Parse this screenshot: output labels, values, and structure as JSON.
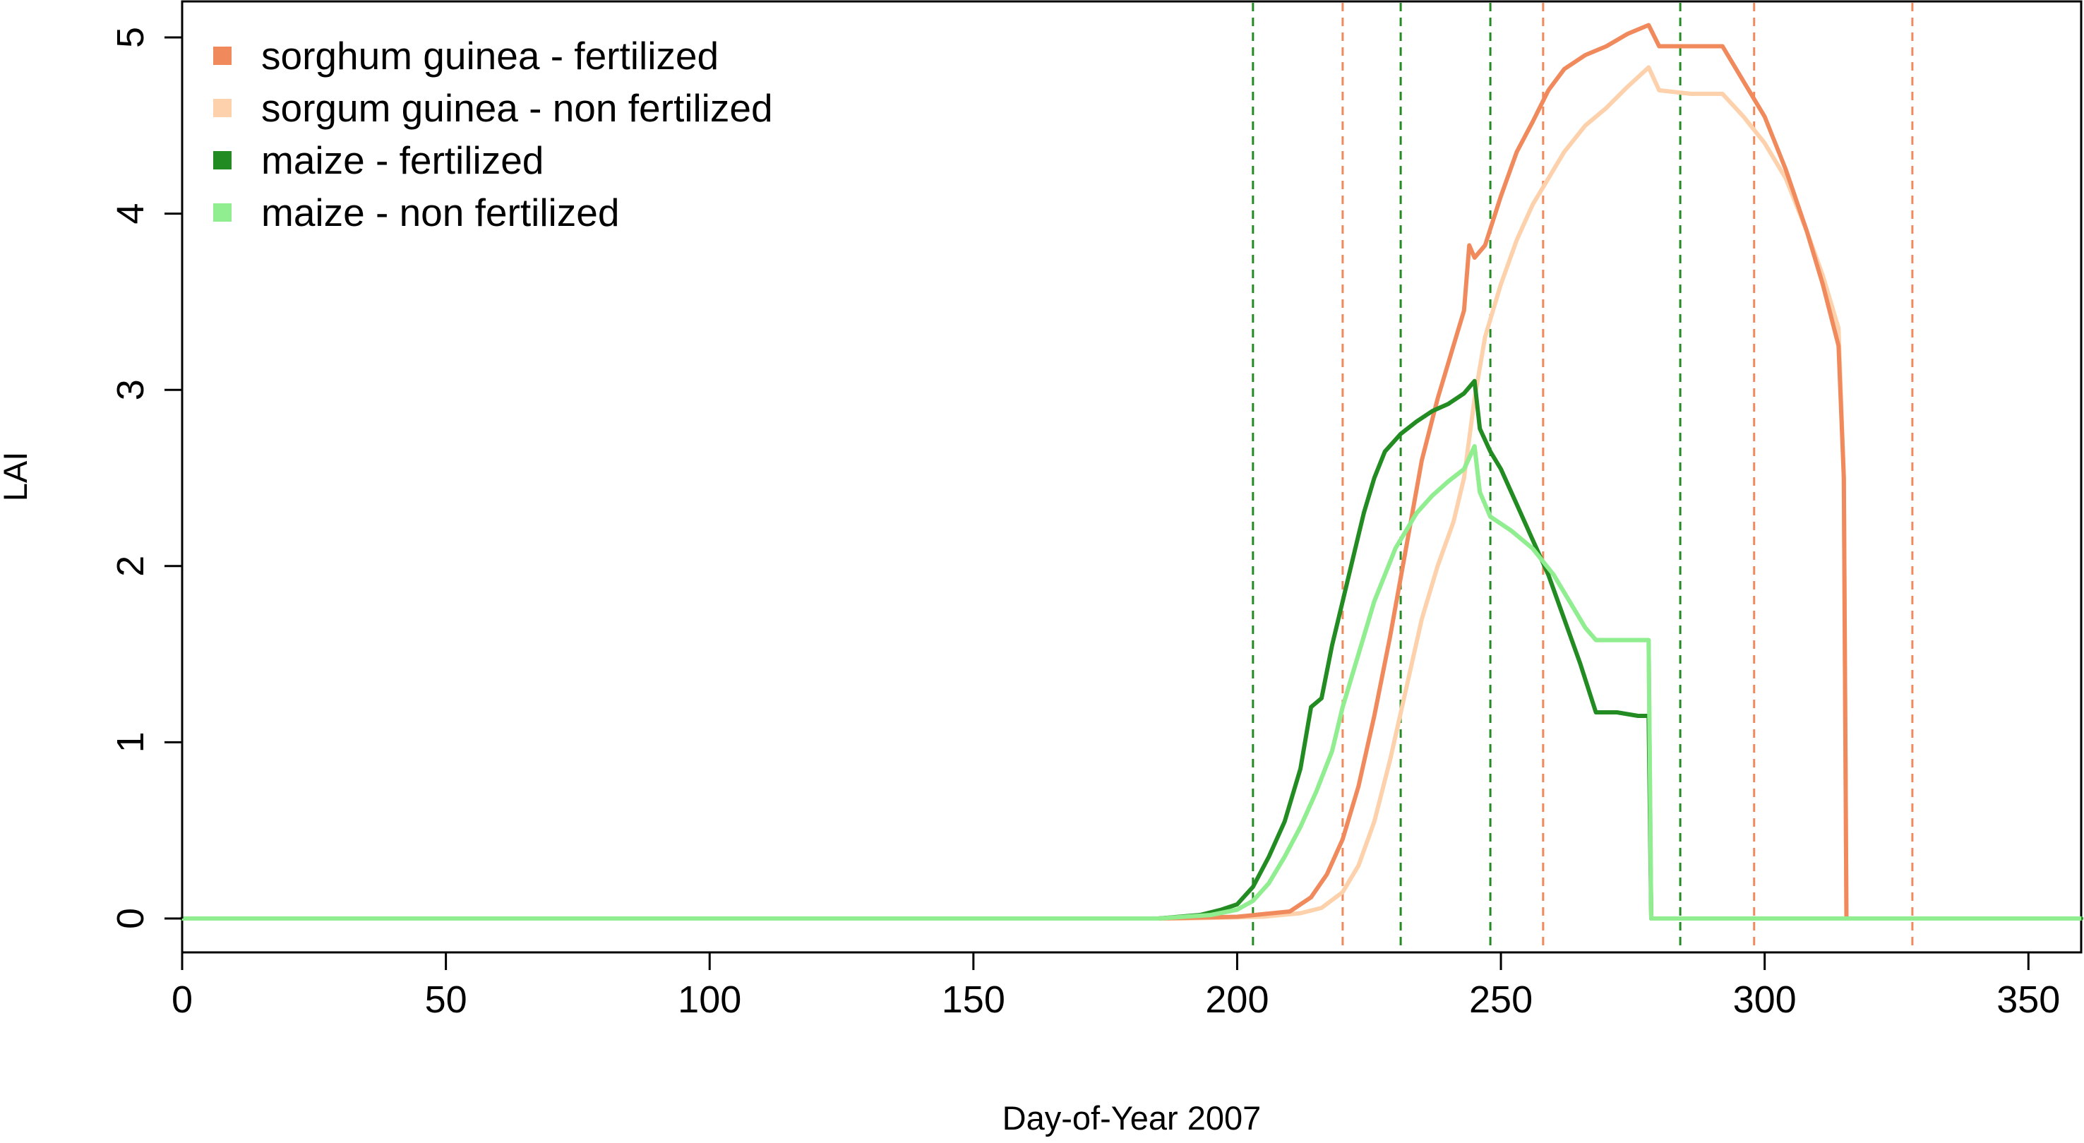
{
  "chart_data": {
    "type": "line",
    "title": "",
    "xlabel": "Day-of-Year 2007",
    "ylabel": "LAI",
    "xlim": [
      0,
      360
    ],
    "ylim": [
      0,
      5
    ],
    "xticks": [
      0,
      50,
      100,
      150,
      200,
      250,
      300,
      350
    ],
    "yticks": [
      0,
      1,
      2,
      3,
      4,
      5
    ],
    "legend_position": "top-left",
    "series": [
      {
        "name": "sorghum guinea - fertilized",
        "color": "#f08a5d",
        "points": [
          [
            0,
            0
          ],
          [
            185,
            0
          ],
          [
            200,
            0.01
          ],
          [
            210,
            0.04
          ],
          [
            214,
            0.12
          ],
          [
            217,
            0.25
          ],
          [
            220,
            0.45
          ],
          [
            223,
            0.75
          ],
          [
            226,
            1.15
          ],
          [
            229,
            1.6
          ],
          [
            232,
            2.1
          ],
          [
            235,
            2.6
          ],
          [
            238,
            2.95
          ],
          [
            241,
            3.25
          ],
          [
            243,
            3.45
          ],
          [
            244,
            3.82
          ],
          [
            245,
            3.75
          ],
          [
            247,
            3.82
          ],
          [
            250,
            4.1
          ],
          [
            253,
            4.35
          ],
          [
            256,
            4.52
          ],
          [
            259,
            4.7
          ],
          [
            262,
            4.82
          ],
          [
            266,
            4.9
          ],
          [
            270,
            4.95
          ],
          [
            274,
            5.02
          ],
          [
            278,
            5.07
          ],
          [
            280,
            4.95
          ],
          [
            286,
            4.95
          ],
          [
            292,
            4.95
          ],
          [
            296,
            4.75
          ],
          [
            300,
            4.55
          ],
          [
            304,
            4.25
          ],
          [
            308,
            3.9
          ],
          [
            311,
            3.6
          ],
          [
            314,
            3.25
          ],
          [
            315,
            2.5
          ],
          [
            315.5,
            0
          ],
          [
            360,
            0
          ]
        ]
      },
      {
        "name": "sorgum guinea - non fertilized",
        "color": "#fdd1ab",
        "points": [
          [
            0,
            0
          ],
          [
            190,
            0
          ],
          [
            205,
            0.01
          ],
          [
            212,
            0.03
          ],
          [
            216,
            0.06
          ],
          [
            220,
            0.15
          ],
          [
            223,
            0.3
          ],
          [
            226,
            0.55
          ],
          [
            229,
            0.9
          ],
          [
            232,
            1.3
          ],
          [
            235,
            1.7
          ],
          [
            238,
            2.0
          ],
          [
            241,
            2.25
          ],
          [
            243,
            2.5
          ],
          [
            245,
            2.95
          ],
          [
            247,
            3.3
          ],
          [
            250,
            3.6
          ],
          [
            253,
            3.85
          ],
          [
            256,
            4.05
          ],
          [
            259,
            4.2
          ],
          [
            262,
            4.35
          ],
          [
            266,
            4.5
          ],
          [
            270,
            4.6
          ],
          [
            274,
            4.72
          ],
          [
            278,
            4.83
          ],
          [
            280,
            4.7
          ],
          [
            286,
            4.68
          ],
          [
            292,
            4.68
          ],
          [
            296,
            4.55
          ],
          [
            300,
            4.4
          ],
          [
            304,
            4.2
          ],
          [
            308,
            3.9
          ],
          [
            311,
            3.65
          ],
          [
            314,
            3.35
          ],
          [
            315,
            2.5
          ],
          [
            315.5,
            0
          ],
          [
            360,
            0
          ]
        ]
      },
      {
        "name": "maize - fertilized",
        "color": "#228b22",
        "points": [
          [
            0,
            0
          ],
          [
            185,
            0
          ],
          [
            193,
            0.02
          ],
          [
            197,
            0.05
          ],
          [
            200,
            0.08
          ],
          [
            203,
            0.18
          ],
          [
            206,
            0.35
          ],
          [
            209,
            0.55
          ],
          [
            212,
            0.85
          ],
          [
            214,
            1.2
          ],
          [
            216,
            1.25
          ],
          [
            218,
            1.55
          ],
          [
            220,
            1.8
          ],
          [
            222,
            2.05
          ],
          [
            224,
            2.3
          ],
          [
            226,
            2.5
          ],
          [
            228,
            2.65
          ],
          [
            231,
            2.75
          ],
          [
            234,
            2.82
          ],
          [
            237,
            2.88
          ],
          [
            240,
            2.92
          ],
          [
            243,
            2.98
          ],
          [
            245,
            3.05
          ],
          [
            246,
            2.78
          ],
          [
            248,
            2.65
          ],
          [
            250,
            2.55
          ],
          [
            253,
            2.35
          ],
          [
            256,
            2.15
          ],
          [
            259,
            1.95
          ],
          [
            262,
            1.7
          ],
          [
            265,
            1.45
          ],
          [
            268,
            1.17
          ],
          [
            272,
            1.17
          ],
          [
            276,
            1.15
          ],
          [
            278,
            1.15
          ],
          [
            278.5,
            0
          ],
          [
            360,
            0
          ]
        ]
      },
      {
        "name": "maize - non fertilized",
        "color": "#90ee90",
        "points": [
          [
            0,
            0
          ],
          [
            185,
            0
          ],
          [
            195,
            0.02
          ],
          [
            200,
            0.05
          ],
          [
            203,
            0.1
          ],
          [
            206,
            0.2
          ],
          [
            209,
            0.35
          ],
          [
            212,
            0.52
          ],
          [
            215,
            0.72
          ],
          [
            218,
            0.95
          ],
          [
            220,
            1.2
          ],
          [
            222,
            1.4
          ],
          [
            224,
            1.6
          ],
          [
            226,
            1.8
          ],
          [
            228,
            1.95
          ],
          [
            230,
            2.1
          ],
          [
            232,
            2.2
          ],
          [
            234,
            2.3
          ],
          [
            237,
            2.4
          ],
          [
            240,
            2.48
          ],
          [
            243,
            2.55
          ],
          [
            245,
            2.68
          ],
          [
            246,
            2.42
          ],
          [
            248,
            2.28
          ],
          [
            252,
            2.2
          ],
          [
            256,
            2.1
          ],
          [
            260,
            1.95
          ],
          [
            263,
            1.8
          ],
          [
            266,
            1.65
          ],
          [
            268,
            1.58
          ],
          [
            272,
            1.58
          ],
          [
            278,
            1.58
          ],
          [
            278.5,
            0
          ],
          [
            360,
            0
          ]
        ]
      }
    ],
    "vlines": [
      {
        "x": 203,
        "color": "#228b22"
      },
      {
        "x": 231,
        "color": "#228b22"
      },
      {
        "x": 248,
        "color": "#228b22"
      },
      {
        "x": 284,
        "color": "#228b22"
      },
      {
        "x": 220,
        "color": "#f08a5d"
      },
      {
        "x": 258,
        "color": "#f08a5d"
      },
      {
        "x": 298,
        "color": "#f08a5d"
      },
      {
        "x": 328,
        "color": "#f08a5d"
      }
    ]
  }
}
